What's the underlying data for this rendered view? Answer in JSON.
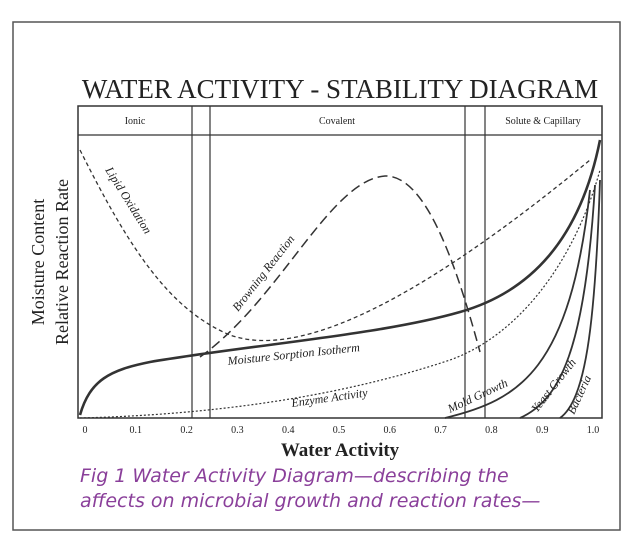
{
  "title": "WATER ACTIVITY - STABILITY DIAGRAM",
  "y_labels": [
    "Moisture Content",
    "Relative Reaction Rate"
  ],
  "x_label": "Water Activity",
  "regions": [
    "Ionic",
    "Covalent",
    "Solute & Capillary"
  ],
  "x_ticks": [
    "0",
    "0.1",
    "0.2",
    "0.3",
    "0.4",
    "0.5",
    "0.6",
    "0.7",
    "0.8",
    "0.9",
    "1.0"
  ],
  "curves": [
    "Lipid Oxidation",
    "Browning Reaction",
    "Moisture Sorption Isotherm",
    "Enzyme Activity",
    "Mold Growth",
    "Yeast Growth",
    "Bacteria"
  ],
  "caption": [
    "Fig 1 Water Activity Diagram—describing the",
    "affects on microbial growth and reaction rates—"
  ]
}
